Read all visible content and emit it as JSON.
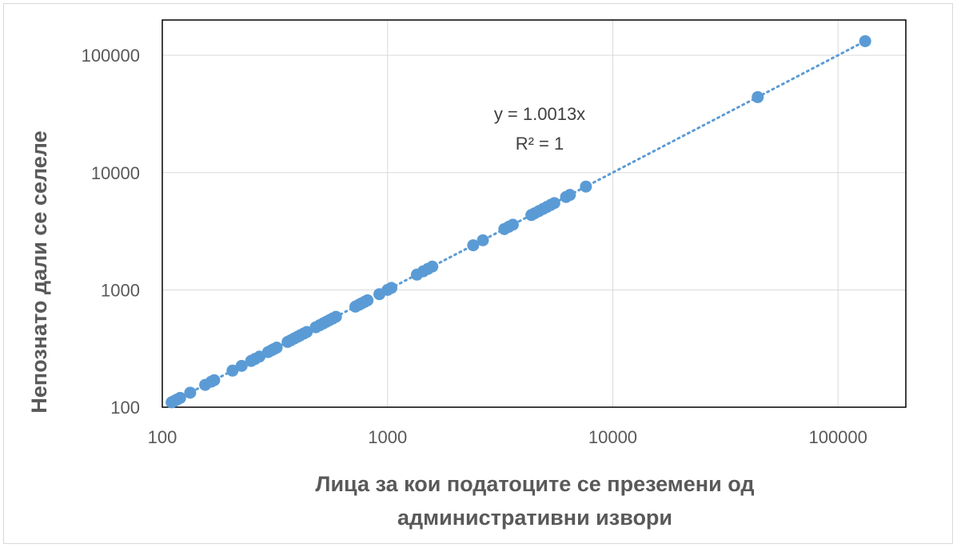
{
  "chart_data": {
    "type": "scatter",
    "xlabel_lines": [
      "Лица за кои податоците се преземени од",
      "административни извори"
    ],
    "ylabel": "Непознато дали се селеле",
    "x_scale": "log",
    "y_scale": "log",
    "xlim": [
      100,
      200000
    ],
    "ylim": [
      100,
      200000
    ],
    "x_ticks": [
      "100",
      "1000",
      "10000",
      "100000"
    ],
    "y_ticks": [
      "100",
      "1000",
      "10000",
      "100000"
    ],
    "grid": true,
    "legend": "none",
    "marker_color": "#5b9bd5",
    "trendline": {
      "style": "dotted",
      "color": "#5b9bd5",
      "slope": 1.0013,
      "equation": "y = 1.0013x",
      "r_squared": "R² = 1"
    },
    "points": [
      [
        110,
        110
      ],
      [
        113,
        113
      ],
      [
        116,
        116
      ],
      [
        120,
        120
      ],
      [
        133,
        133
      ],
      [
        155,
        155
      ],
      [
        165,
        165
      ],
      [
        170,
        170
      ],
      [
        205,
        205
      ],
      [
        225,
        225
      ],
      [
        248,
        248
      ],
      [
        258,
        258
      ],
      [
        270,
        270
      ],
      [
        295,
        295
      ],
      [
        305,
        305
      ],
      [
        313,
        313
      ],
      [
        322,
        322
      ],
      [
        360,
        360
      ],
      [
        372,
        372
      ],
      [
        385,
        385
      ],
      [
        398,
        398
      ],
      [
        410,
        410
      ],
      [
        425,
        425
      ],
      [
        438,
        438
      ],
      [
        480,
        480
      ],
      [
        500,
        500
      ],
      [
        518,
        518
      ],
      [
        535,
        535
      ],
      [
        552,
        552
      ],
      [
        570,
        570
      ],
      [
        590,
        590
      ],
      [
        720,
        720
      ],
      [
        745,
        745
      ],
      [
        765,
        765
      ],
      [
        790,
        790
      ],
      [
        815,
        815
      ],
      [
        920,
        920
      ],
      [
        1000,
        1000
      ],
      [
        1040,
        1040
      ],
      [
        1350,
        1350
      ],
      [
        1440,
        1440
      ],
      [
        1510,
        1510
      ],
      [
        1580,
        1580
      ],
      [
        2400,
        2400
      ],
      [
        2650,
        2650
      ],
      [
        3300,
        3300
      ],
      [
        3450,
        3450
      ],
      [
        3600,
        3600
      ],
      [
        4350,
        4350
      ],
      [
        4500,
        4500
      ],
      [
        4700,
        4700
      ],
      [
        4900,
        4900
      ],
      [
        5100,
        5100
      ],
      [
        5300,
        5300
      ],
      [
        5500,
        5500
      ],
      [
        6200,
        6200
      ],
      [
        6450,
        6450
      ],
      [
        7600,
        7600
      ],
      [
        44000,
        44000
      ],
      [
        132000,
        132000
      ]
    ]
  }
}
